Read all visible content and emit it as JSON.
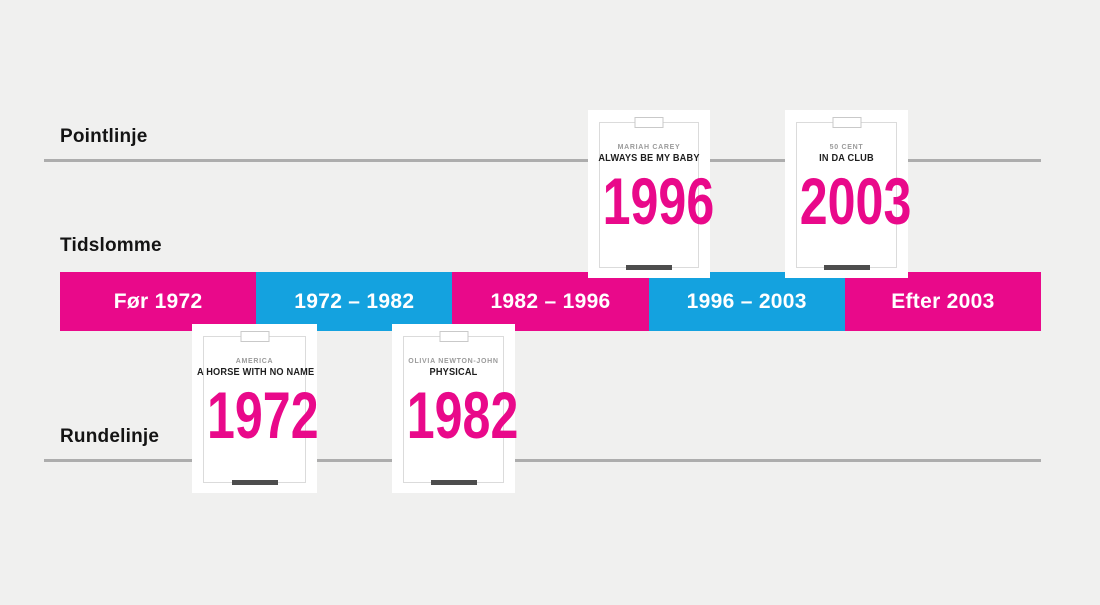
{
  "labels": {
    "pointlinje": "Pointlinje",
    "tidslomme": "Tidslomme",
    "rundelinje": "Rundelinje"
  },
  "timeline": {
    "segments": [
      {
        "label": "Før 1972",
        "color": "#E9098A"
      },
      {
        "label": "1972 – 1982",
        "color": "#14A2DF"
      },
      {
        "label": "1982 – 1996",
        "color": "#E9098A"
      },
      {
        "label": "1996 – 2003",
        "color": "#14A2DF"
      },
      {
        "label": "Efter 2003",
        "color": "#E9098A"
      }
    ]
  },
  "cards": [
    {
      "artist": "MARIAH CAREY",
      "title": "ALWAYS BE MY BABY",
      "year": "1996",
      "position": "above-timeline"
    },
    {
      "artist": "50 CENT",
      "title": "IN DA CLUB",
      "year": "2003",
      "position": "above-timeline"
    },
    {
      "artist": "AMERICA",
      "title": "A HORSE WITH NO NAME",
      "year": "1972",
      "position": "below-timeline"
    },
    {
      "artist": "OLIVIA NEWTON-JOHN",
      "title": "PHYSICAL",
      "year": "1982",
      "position": "below-timeline"
    }
  ],
  "colors": {
    "background": "#F0F0EF",
    "pink": "#E9098A",
    "blue": "#14A2DF",
    "line_gray": "#ADADAD",
    "year_text": "#E9098A",
    "card_bar": "#4D4D4D"
  }
}
